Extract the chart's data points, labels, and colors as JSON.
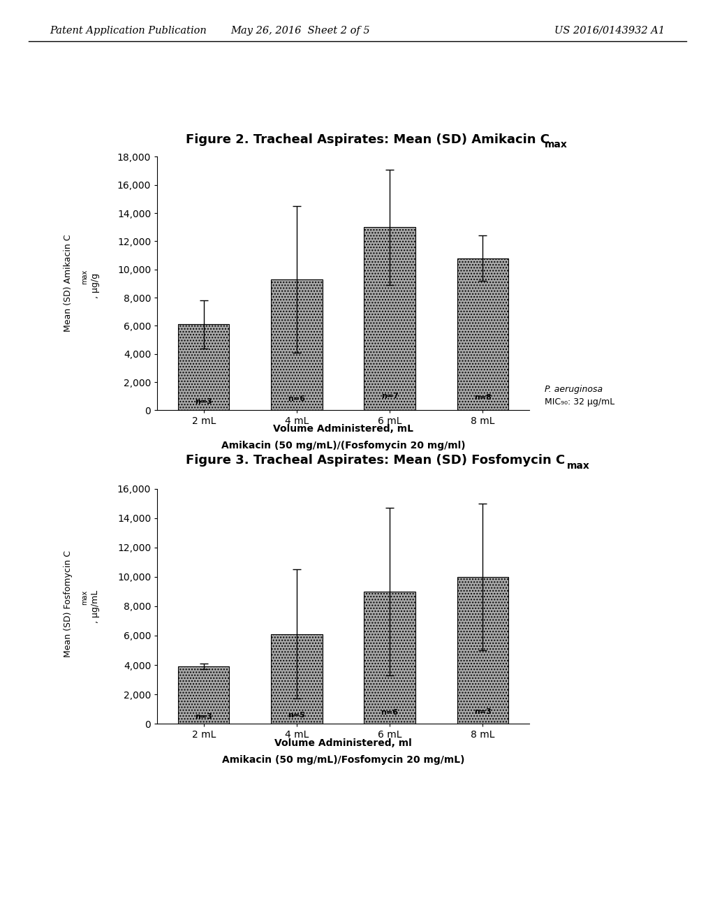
{
  "fig2": {
    "title": "Figure 2. Tracheal Aspirates: Mean (SD) Amikacin C",
    "title_sub": "max",
    "categories": [
      "2 mL",
      "4 mL",
      "6 mL",
      "8 mL"
    ],
    "values": [
      6100,
      9300,
      13000,
      10800
    ],
    "errors": [
      1700,
      5200,
      4100,
      1600
    ],
    "n_labels": [
      "n=3",
      "n=6",
      "n=7",
      "n=8"
    ],
    "ylabel": "Mean (SD) Amikacin C",
    "ylabel_sub": "max",
    "ylabel_unit": ", µg/g",
    "xlabel_line1": "Volume Administered, mL",
    "xlabel_line2": "Amikacin (50 mg/mL)/(Fosfomycin 20 mg/ml)",
    "ylim": [
      0,
      18000
    ],
    "yticks": [
      0,
      2000,
      4000,
      6000,
      8000,
      10000,
      12000,
      14000,
      16000,
      18000
    ],
    "mic_line1": "P. aeruginosa",
    "mic_line2": "MIC₉₀: 32 µg/mL"
  },
  "fig3": {
    "title": "Figure 3. Tracheal Aspirates: Mean (SD) Fosfomycin C",
    "title_sub": "max",
    "categories": [
      "2 mL",
      "4 mL",
      "6 mL",
      "8 mL"
    ],
    "values": [
      3900,
      6100,
      9000,
      10000
    ],
    "errors": [
      200,
      4400,
      5700,
      5000
    ],
    "n_labels": [
      "n=3",
      "n=5",
      "n=6",
      "n=3"
    ],
    "ylabel": "Mean (SD) Fosfomycin C",
    "ylabel_sub": "max",
    "ylabel_unit": ", µg/mL",
    "xlabel_line1": "Volume Administered, ml",
    "xlabel_line2": "Amikacin (50 mg/mL)/Fosfomycin 20 mg/mL)",
    "ylim": [
      0,
      16000
    ],
    "yticks": [
      0,
      2000,
      4000,
      6000,
      8000,
      10000,
      12000,
      14000,
      16000
    ]
  },
  "header_left": "Patent Application Publication",
  "header_center": "May 26, 2016  Sheet 2 of 5",
  "header_right": "US 2016/0143932 A1",
  "bar_color": "#a8a8a8",
  "bar_edgecolor": "#000000",
  "bar_hatch": "....",
  "background_color": "#ffffff"
}
